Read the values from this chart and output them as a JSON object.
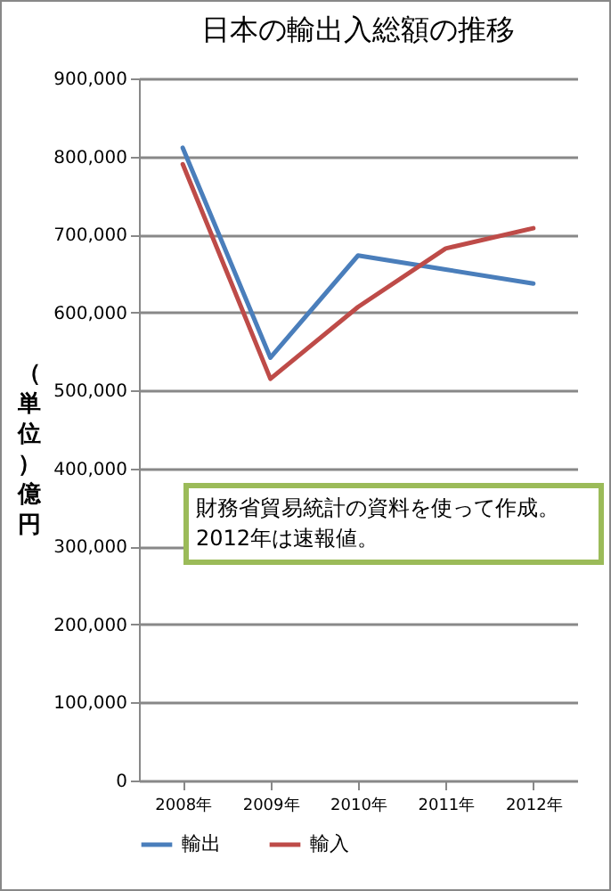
{
  "chart_data": {
    "type": "line",
    "title": "日本の輸出入総額の推移",
    "ylabel": "（単位）億円",
    "categories": [
      "2008年",
      "2009年",
      "2010年",
      "2011年",
      "2012年"
    ],
    "series": [
      {
        "name": "輸出",
        "color": "#4a7ebb",
        "values": [
          811000,
          542000,
          673000,
          655000,
          637000
        ]
      },
      {
        "name": "輸入",
        "color": "#be4b48",
        "values": [
          790000,
          515000,
          607000,
          682000,
          708000
        ]
      }
    ],
    "ylim": [
      0,
      900000
    ],
    "yticks": [
      0,
      {
        "value": 100000,
        "label": "100,000"
      },
      {
        "value": 200000,
        "label": "200,000"
      },
      {
        "value": 300000,
        "label": "300,000"
      },
      {
        "value": 400000,
        "label": "400,000"
      },
      {
        "value": 500000,
        "label": "500,000"
      },
      {
        "value": 600000,
        "label": "600,000"
      },
      {
        "value": 700000,
        "label": "700,000"
      },
      {
        "value": 800000,
        "label": "800,000"
      },
      {
        "value": 900000,
        "label": "900,000"
      }
    ],
    "grid": "y",
    "legend": "bottom",
    "marker": "none",
    "line_style": "solid",
    "annotations": [
      "財務省貿易統計の資料を使って作成。2012年は速報値。"
    ]
  }
}
